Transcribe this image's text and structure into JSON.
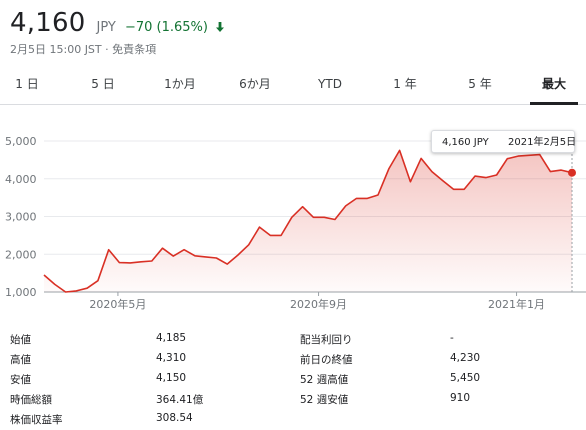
{
  "header": {
    "price": "4,160",
    "currency": "JPY",
    "change": "−70 (1.65%)",
    "change_color": "#137333",
    "change_icon": "arrow-down-icon",
    "timestamp": "2月5日 15:00 JST · 免責条項"
  },
  "tabs": [
    {
      "label": "1 日",
      "active": false
    },
    {
      "label": "5 日",
      "active": false
    },
    {
      "label": "1か月",
      "active": false
    },
    {
      "label": "6か月",
      "active": false
    },
    {
      "label": "YTD",
      "active": false
    },
    {
      "label": "1 年",
      "active": false
    },
    {
      "label": "5 年",
      "active": false
    },
    {
      "label": "最大",
      "active": true
    }
  ],
  "tooltip": {
    "price": "4,160 JPY",
    "date": "2021年2月5日"
  },
  "chart_data": {
    "type": "area",
    "line_color": "#d93025",
    "y_ticks": [
      "5,000",
      "4,000",
      "3,000",
      "2,000",
      "1,000"
    ],
    "x_ticks": [
      "2020年5月",
      "2020年9月",
      "2021年1月"
    ],
    "ylim": [
      1000,
      5000
    ],
    "grid": true,
    "values": [
      1450,
      1200,
      1000,
      1030,
      1100,
      1300,
      2120,
      1780,
      1770,
      1800,
      1820,
      2160,
      1950,
      2120,
      1960,
      1930,
      1900,
      1740,
      1980,
      2250,
      2720,
      2500,
      2500,
      2980,
      3260,
      2980,
      2980,
      2920,
      3280,
      3480,
      3480,
      3570,
      4260,
      4750,
      3920,
      4540,
      4190,
      3950,
      3720,
      3720,
      4070,
      4030,
      4100,
      4530,
      4600,
      4620,
      4640,
      4190,
      4230,
      4160
    ]
  },
  "stats": {
    "left": [
      {
        "label": "始値",
        "value": "4,185"
      },
      {
        "label": "高値",
        "value": "4,310"
      },
      {
        "label": "安値",
        "value": "4,150"
      },
      {
        "label": "時価総額",
        "value": "364.41億"
      },
      {
        "label": "株価収益率",
        "value": "308.54"
      }
    ],
    "right": [
      {
        "label": "配当利回り",
        "value": "-"
      },
      {
        "label": "前日の終値",
        "value": "4,230"
      },
      {
        "label": "52 週高値",
        "value": "5,450"
      },
      {
        "label": "52 週安値",
        "value": "910"
      }
    ]
  }
}
